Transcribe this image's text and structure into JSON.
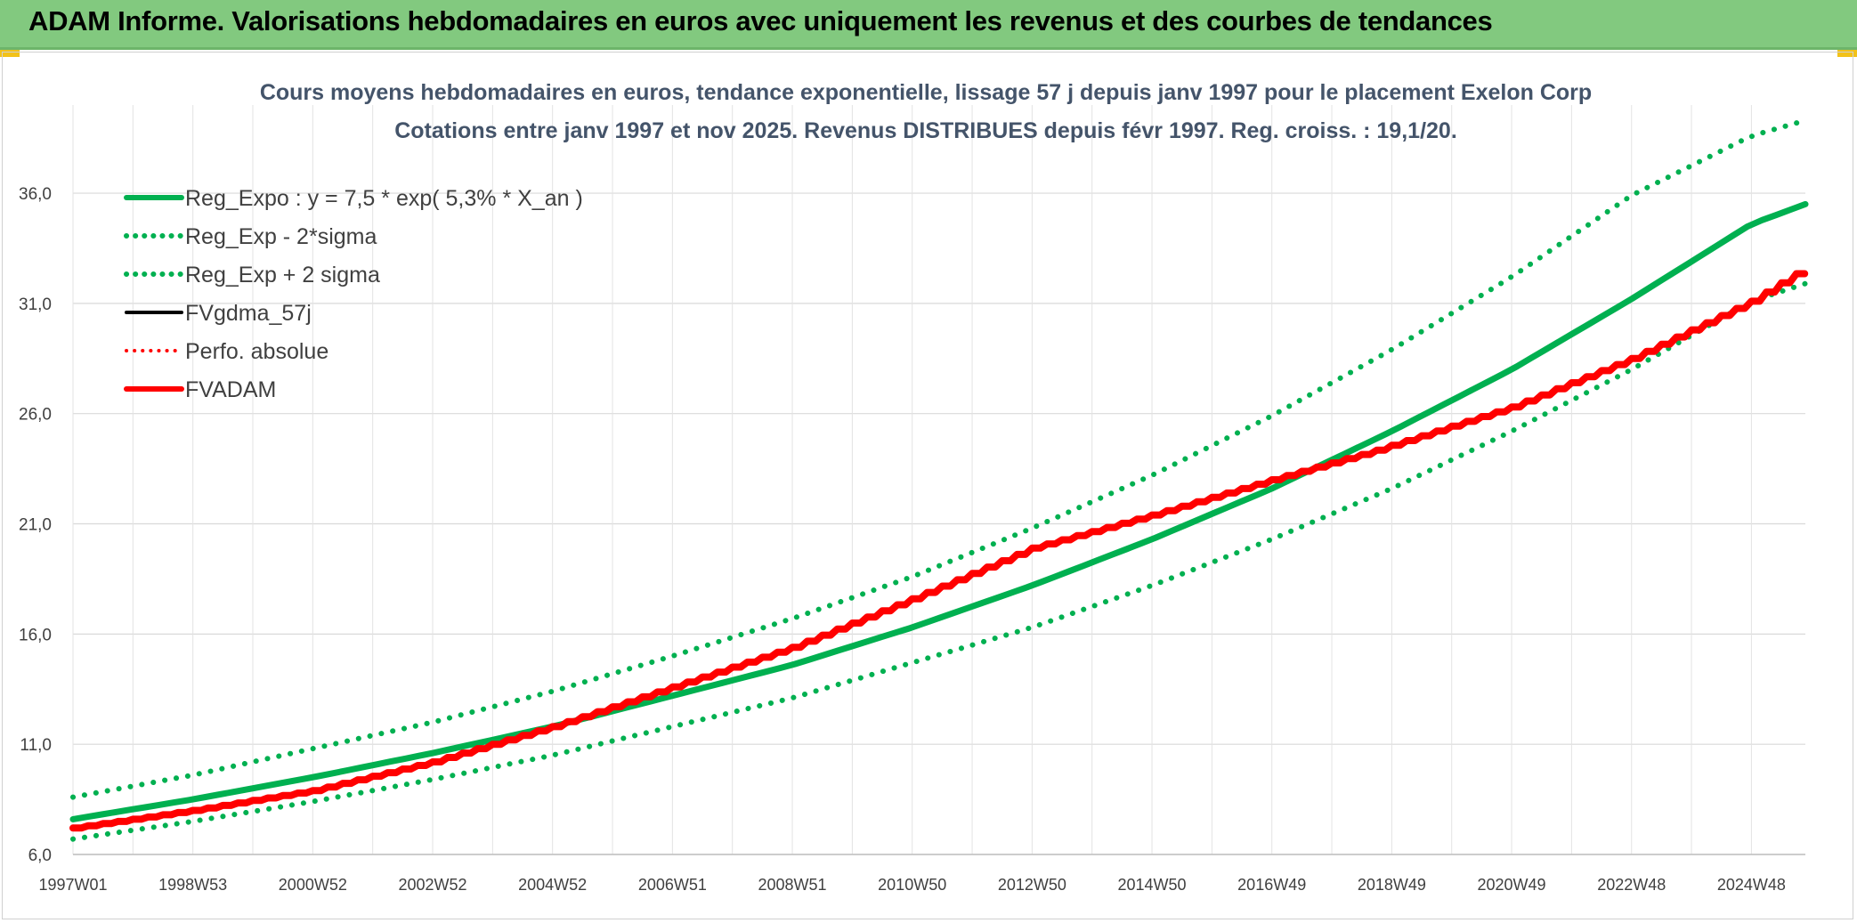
{
  "header": {
    "title": "ADAM Informe. Valorisations hebdomadaires en euros avec uniquement les revenus et des courbes de tendances"
  },
  "colors": {
    "header_bg": "#82c97f",
    "green": "#00b050",
    "red": "#ff0000",
    "black": "#000000"
  },
  "chart_data": {
    "type": "line",
    "title": "Cours moyens hebdomadaires en euros, tendance exponentielle, lissage 57 j depuis janv 1997 pour le placement Exelon Corp",
    "subtitle": "Cotations entre janv 1997 et nov 2025. Revenus DISTRIBUES depuis févr 1997. Reg. croiss. : 19,1/20.",
    "ylim": [
      6.0,
      40.0
    ],
    "y_ticks": [
      "6,0",
      "11,0",
      "16,0",
      "21,0",
      "26,0",
      "31,0",
      "36,0"
    ],
    "y_tick_values": [
      6,
      11,
      16,
      21,
      26,
      31,
      36
    ],
    "x_range_years": [
      1997.0,
      2025.9
    ],
    "x_tick_labels": [
      "1997W01",
      "1998W53",
      "2000W52",
      "2002W52",
      "2004W52",
      "2006W51",
      "2008W51",
      "2010W50",
      "2012W50",
      "2014W50",
      "2016W49",
      "2018W49",
      "2020W49",
      "2022W48",
      "2024W48"
    ],
    "x_tick_years": [
      1997.0,
      1999.0,
      2001.0,
      2003.0,
      2005.0,
      2007.0,
      2009.0,
      2011.0,
      2013.0,
      2015.0,
      2017.0,
      2019.0,
      2021.0,
      2023.0,
      2025.0
    ],
    "grid": true,
    "legend_position": "top-left",
    "series": [
      {
        "name": "Reg_Expo : y = 7,5 * exp( 5,3% *  X_an )",
        "style": "solid-green-thick",
        "x": [
          1997.0,
          1999.0,
          2001.0,
          2003.0,
          2005.0,
          2007.0,
          2009.0,
          2011.0,
          2013.0,
          2015.0,
          2017.0,
          2019.0,
          2021.0,
          2023.0,
          2025.0,
          2025.9
        ],
        "values": [
          7.6,
          8.5,
          9.5,
          10.6,
          11.8,
          13.2,
          14.6,
          16.3,
          18.2,
          20.3,
          22.6,
          25.2,
          28.0,
          31.2,
          34.6,
          35.5
        ]
      },
      {
        "name": "Reg_Exp - 2*sigma",
        "style": "dotted-green",
        "x": [
          1997.0,
          1999.0,
          2001.0,
          2003.0,
          2005.0,
          2007.0,
          2009.0,
          2011.0,
          2013.0,
          2015.0,
          2017.0,
          2019.0,
          2021.0,
          2023.0,
          2025.0,
          2025.9
        ],
        "values": [
          6.7,
          7.5,
          8.4,
          9.4,
          10.5,
          11.8,
          13.1,
          14.7,
          16.3,
          18.2,
          20.3,
          22.6,
          25.2,
          28.0,
          31.1,
          31.9
        ]
      },
      {
        "name": "Reg_Exp + 2 sigma",
        "style": "dotted-green",
        "x": [
          1997.0,
          1999.0,
          2001.0,
          2003.0,
          2005.0,
          2007.0,
          2009.0,
          2011.0,
          2013.0,
          2015.0,
          2017.0,
          2019.0,
          2021.0,
          2023.0,
          2025.0,
          2025.9
        ],
        "values": [
          8.6,
          9.6,
          10.8,
          12.0,
          13.4,
          15.0,
          16.7,
          18.6,
          20.8,
          23.2,
          25.9,
          28.9,
          32.2,
          35.9,
          38.6,
          39.3
        ]
      },
      {
        "name": "FVgdma_57j",
        "style": "solid-black",
        "x": [],
        "values": []
      },
      {
        "name": "Perfo. absolue",
        "style": "dotted-red",
        "x": [],
        "values": []
      },
      {
        "name": "FVADAM",
        "style": "solid-red-thick-stepped",
        "x": [
          1997.0,
          1999.0,
          2001.0,
          2003.0,
          2005.0,
          2007.0,
          2009.0,
          2011.0,
          2013.0,
          2015.0,
          2017.0,
          2018.7,
          2021.0,
          2023.0,
          2025.0,
          2025.9
        ],
        "values": [
          7.2,
          8.0,
          8.9,
          10.2,
          11.8,
          13.6,
          15.4,
          17.6,
          19.9,
          21.4,
          23.0,
          24.3,
          26.3,
          28.5,
          31.1,
          32.6
        ]
      }
    ]
  }
}
